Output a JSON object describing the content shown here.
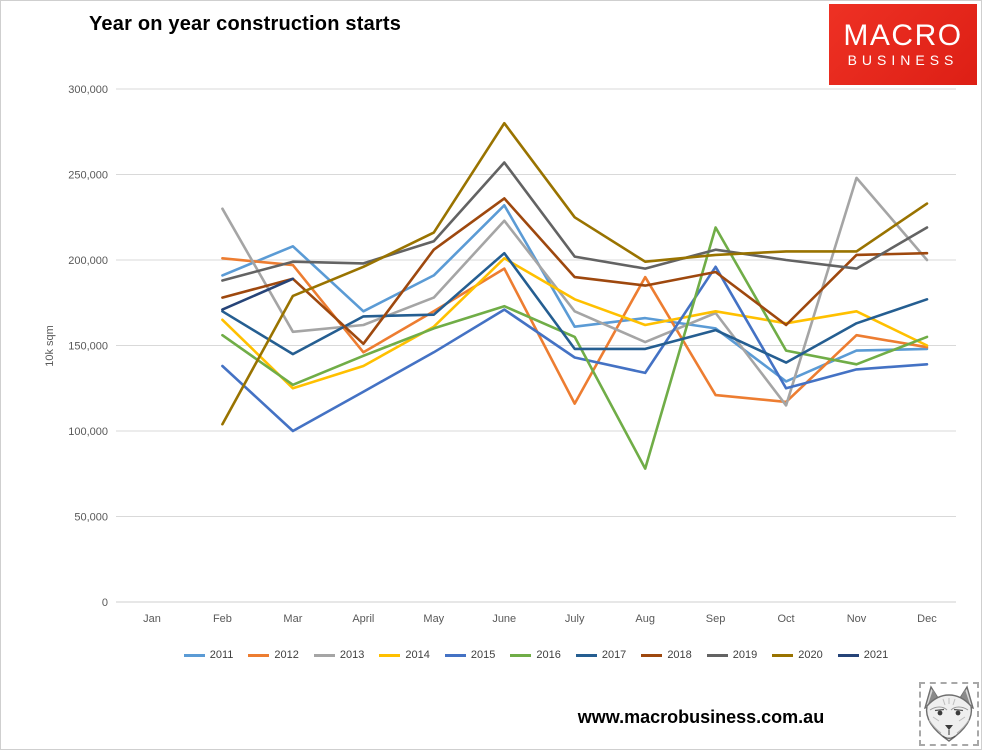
{
  "title": "Year on year construction starts",
  "logo": {
    "line1": "MACRO",
    "line2": "BUSINESS",
    "bg_color": "#e2261d"
  },
  "footer": {
    "website": "www.macrobusiness.com.au",
    "fox_logo": "fox-sketch-icon"
  },
  "chart_data": {
    "type": "line",
    "title": "Year on year construction starts",
    "xlabel": "",
    "ylabel": "10k sqm",
    "ylim": [
      0,
      300000
    ],
    "ytick_step": 50000,
    "grid": true,
    "legend_position": "bottom",
    "categories": [
      "Jan",
      "Feb",
      "Mar",
      "April",
      "May",
      "June",
      "July",
      "Aug",
      "Sep",
      "Oct",
      "Nov",
      "Dec"
    ],
    "series": [
      {
        "name": "2011",
        "color": "#5B9BD5",
        "values": [
          null,
          191000,
          208000,
          170000,
          191000,
          232000,
          161000,
          166000,
          160000,
          129000,
          147000,
          148000
        ]
      },
      {
        "name": "2012",
        "color": "#ED7D31",
        "values": [
          null,
          201000,
          197000,
          146000,
          170000,
          195000,
          116000,
          190000,
          121000,
          117000,
          156000,
          149000
        ]
      },
      {
        "name": "2013",
        "color": "#A5A5A5",
        "values": [
          null,
          230000,
          158000,
          162000,
          178000,
          223000,
          170000,
          152000,
          169000,
          115000,
          248000,
          200000
        ]
      },
      {
        "name": "2014",
        "color": "#FFC000",
        "values": [
          null,
          165000,
          125000,
          138000,
          161000,
          201000,
          177000,
          162000,
          170000,
          163000,
          170000,
          150000
        ]
      },
      {
        "name": "2015",
        "color": "#4472C4",
        "values": [
          null,
          138000,
          100000,
          123000,
          146000,
          171000,
          143000,
          134000,
          196000,
          125000,
          136000,
          139000
        ]
      },
      {
        "name": "2016",
        "color": "#70AD47",
        "values": [
          null,
          156000,
          127000,
          144000,
          160000,
          173000,
          155000,
          78000,
          219000,
          147000,
          139000,
          155000
        ]
      },
      {
        "name": "2017",
        "color": "#255E91",
        "values": [
          null,
          170000,
          145000,
          167000,
          168000,
          204000,
          148000,
          148000,
          159000,
          140000,
          163000,
          177000
        ]
      },
      {
        "name": "2018",
        "color": "#9E480E",
        "values": [
          null,
          178000,
          189000,
          151000,
          206000,
          236000,
          190000,
          185000,
          193000,
          162000,
          203000,
          204000
        ]
      },
      {
        "name": "2019",
        "color": "#636363",
        "values": [
          null,
          188000,
          199000,
          198000,
          211000,
          257000,
          202000,
          195000,
          206000,
          200000,
          195000,
          219000
        ]
      },
      {
        "name": "2020",
        "color": "#997300",
        "values": [
          null,
          104000,
          179000,
          196000,
          216000,
          280000,
          225000,
          199000,
          203000,
          205000,
          205000,
          233000
        ]
      },
      {
        "name": "2021",
        "color": "#264478",
        "values": [
          null,
          171000,
          189000,
          null,
          null,
          null,
          null,
          null,
          null,
          null,
          null,
          null
        ]
      }
    ],
    "axis_text_color": "#595959",
    "gridline_color": "#d9d9d9"
  }
}
